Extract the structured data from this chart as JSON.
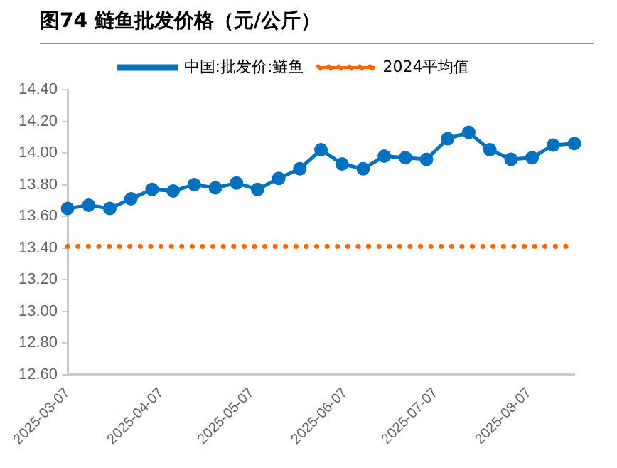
{
  "chart_data": {
    "type": "line",
    "title": "图74 鲢鱼批发价格（元/公斤）",
    "x": [
      "2025-03-07",
      "2025-03-14",
      "2025-03-21",
      "2025-03-28",
      "2025-04-04",
      "2025-04-11",
      "2025-04-18",
      "2025-04-25",
      "2025-05-02",
      "2025-05-09",
      "2025-05-16",
      "2025-05-23",
      "2025-05-30",
      "2025-06-06",
      "2025-06-13",
      "2025-06-20",
      "2025-06-27",
      "2025-07-04",
      "2025-07-11",
      "2025-07-18",
      "2025-07-25",
      "2025-08-01",
      "2025-08-08",
      "2025-08-15",
      "2025-08-22"
    ],
    "series": [
      {
        "name": "中国:批发价:鲢鱼",
        "color": "#0070c0",
        "marker": "circle",
        "line_style": "solid",
        "values": [
          13.65,
          13.67,
          13.65,
          13.71,
          13.77,
          13.76,
          13.8,
          13.78,
          13.81,
          13.77,
          13.84,
          13.9,
          14.02,
          13.93,
          13.9,
          13.98,
          13.97,
          13.96,
          14.09,
          14.13,
          14.02,
          13.96,
          13.97,
          14.05,
          14.06
        ]
      },
      {
        "name": "2024平均值",
        "color": "#ff6600",
        "marker": "none",
        "line_style": "dotted",
        "values": [
          13.41,
          13.41,
          13.41,
          13.41,
          13.41,
          13.41,
          13.41,
          13.41,
          13.41,
          13.41,
          13.41,
          13.41,
          13.41,
          13.41,
          13.41,
          13.41,
          13.41,
          13.41,
          13.41,
          13.41,
          13.41,
          13.41,
          13.41,
          13.41,
          13.41
        ]
      }
    ],
    "xlim": [
      "2025-03-07",
      "2025-08-22"
    ],
    "xticks": [
      "2025-03-07",
      "2025-04-07",
      "2025-05-07",
      "2025-06-07",
      "2025-07-07",
      "2025-08-07"
    ],
    "ylim": [
      12.6,
      14.4
    ],
    "yticks": [
      {
        "value": 12.6,
        "label": "12.60"
      },
      {
        "value": 12.8,
        "label": "12.80"
      },
      {
        "value": 13.0,
        "label": "13.00"
      },
      {
        "value": 13.2,
        "label": "13.20"
      },
      {
        "value": 13.4,
        "label": "13.40"
      },
      {
        "value": 13.6,
        "label": "13.60"
      },
      {
        "value": 13.8,
        "label": "13.80"
      },
      {
        "value": 14.0,
        "label": "14.00"
      },
      {
        "value": 14.2,
        "label": "14.20"
      },
      {
        "value": 14.4,
        "label": "14.40"
      }
    ],
    "grid": false,
    "legend": "top"
  }
}
